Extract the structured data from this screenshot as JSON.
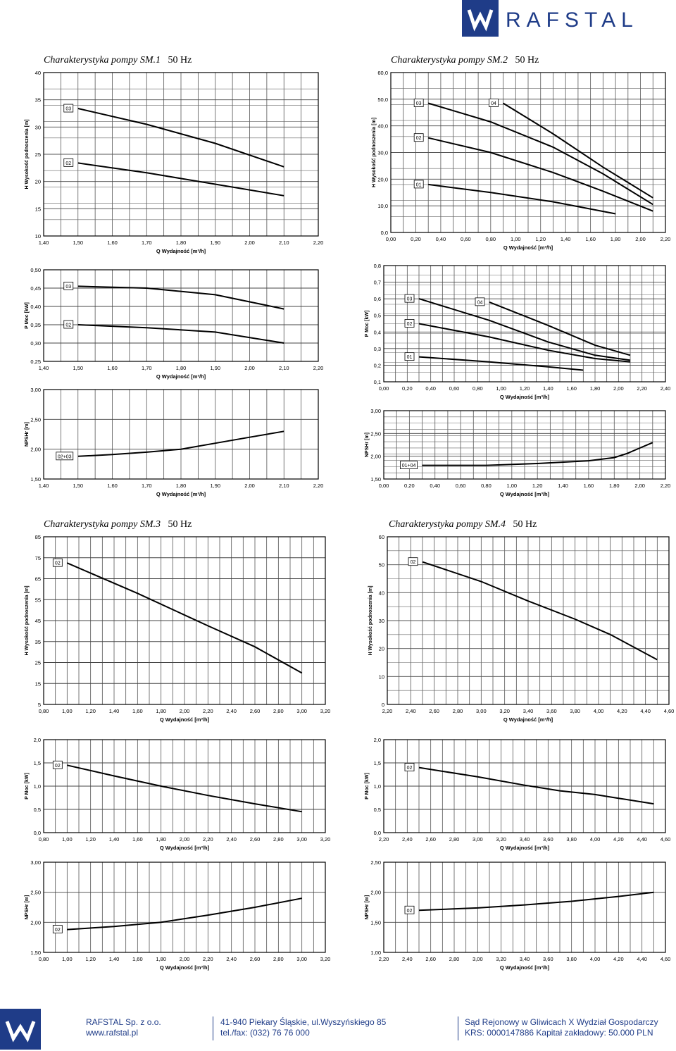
{
  "header": {
    "brand": "RAFSTAL",
    "accent": "#1f3c88"
  },
  "titles": [
    {
      "name": "Charakterystyka pompy SM.1",
      "freq": "50 Hz"
    },
    {
      "name": "Charakterystyka pompy SM.2",
      "freq": "50 Hz"
    },
    {
      "name": "Charakterystyka pompy SM.3",
      "freq": "50 Hz"
    },
    {
      "name": "Charakterystyka pompy SM.4",
      "freq": "50 Hz"
    }
  ],
  "chart_data": [
    {
      "type": "line",
      "id": "sm1-h",
      "xlabel": "Q Wydajność [m³/h]",
      "ylabel": "H Wysokość podnoszenia [m]",
      "xlim": [
        1.4,
        2.2
      ],
      "ylim": [
        10,
        40
      ],
      "xticks": [
        "1,40",
        "1,50",
        "1,60",
        "1,70",
        "1,80",
        "1,90",
        "2,00",
        "2,10",
        "2,20"
      ],
      "yticks": [
        "10",
        "15",
        "20",
        "25",
        "30",
        "35",
        "40"
      ],
      "series": [
        {
          "name": "03",
          "x": [
            1.5,
            1.7,
            1.9,
            2.1
          ],
          "y": [
            33.4,
            30.5,
            27.0,
            22.7
          ]
        },
        {
          "name": "02",
          "x": [
            1.5,
            1.7,
            1.9,
            2.1
          ],
          "y": [
            23.4,
            21.6,
            19.5,
            17.4
          ]
        }
      ]
    },
    {
      "type": "line",
      "id": "sm2-h",
      "xlabel": "Q Wydajność [m³/h]",
      "ylabel": "H Wysokość podnoszenia [m]",
      "xlim": [
        0,
        2.2
      ],
      "ylim": [
        0,
        60
      ],
      "xticks": [
        "0,00",
        "0,20",
        "0,40",
        "0,60",
        "0,80",
        "1,00",
        "1,20",
        "1,40",
        "1,60",
        "1,80",
        "2,00",
        "2,20"
      ],
      "yticks": [
        "0,0",
        "10,0",
        "20,0",
        "30,0",
        "40,0",
        "50,0",
        "60,0"
      ],
      "series": [
        {
          "name": "04",
          "x": [
            0.9,
            1.3,
            1.7,
            2.1
          ],
          "y": [
            48.5,
            37.0,
            24.5,
            13.0
          ]
        },
        {
          "name": "03",
          "x": [
            0.3,
            0.8,
            1.3,
            1.7,
            2.1
          ],
          "y": [
            48.5,
            41.5,
            32.0,
            22.0,
            10.5
          ]
        },
        {
          "name": "02",
          "x": [
            0.3,
            0.8,
            1.3,
            1.7,
            2.1
          ],
          "y": [
            35.5,
            30.0,
            22.5,
            15.5,
            8.0
          ]
        },
        {
          "name": "01",
          "x": [
            0.3,
            0.8,
            1.3,
            1.8
          ],
          "y": [
            18.0,
            15.0,
            11.5,
            7.0
          ]
        }
      ]
    },
    {
      "type": "line",
      "id": "sm1-p",
      "xlabel": "Q Wydajność [m³/h]",
      "ylabel": "P Moc [kW]",
      "xlim": [
        1.4,
        2.2
      ],
      "ylim": [
        0.25,
        0.5
      ],
      "xticks": [
        "1,40",
        "1,50",
        "1,60",
        "1,70",
        "1,80",
        "1,90",
        "2,00",
        "2,10",
        "2,20"
      ],
      "yticks": [
        "0,25",
        "0,30",
        "0,35",
        "0,40",
        "0,45",
        "0,50"
      ],
      "series": [
        {
          "name": "03",
          "x": [
            1.5,
            1.7,
            1.9,
            2.1
          ],
          "y": [
            0.455,
            0.45,
            0.432,
            0.393
          ]
        },
        {
          "name": "02",
          "x": [
            1.5,
            1.7,
            1.9,
            2.1
          ],
          "y": [
            0.35,
            0.342,
            0.33,
            0.3
          ]
        }
      ]
    },
    {
      "type": "line",
      "id": "sm2-p",
      "xlabel": "Q Wydajność [m³/h]",
      "ylabel": "P Moc [kW]",
      "xlim": [
        0,
        2.4
      ],
      "ylim": [
        0.1,
        0.8
      ],
      "xticks": [
        "0,00",
        "0,20",
        "0,40",
        "0,60",
        "0,80",
        "1,00",
        "1,20",
        "1,40",
        "1,60",
        "1,80",
        "2,00",
        "2,20",
        "2,40"
      ],
      "yticks": [
        "0,1",
        "0,2",
        "0,3",
        "0,4",
        "0,5",
        "0,6",
        "0,7",
        "0,8"
      ],
      "series": [
        {
          "name": "04",
          "x": [
            0.9,
            1.4,
            1.8,
            2.1
          ],
          "y": [
            0.58,
            0.44,
            0.32,
            0.26
          ]
        },
        {
          "name": "03",
          "x": [
            0.3,
            0.9,
            1.4,
            1.8,
            2.1
          ],
          "y": [
            0.6,
            0.47,
            0.34,
            0.26,
            0.23
          ]
        },
        {
          "name": "02",
          "x": [
            0.3,
            0.9,
            1.4,
            1.8,
            2.1
          ],
          "y": [
            0.45,
            0.37,
            0.29,
            0.24,
            0.22
          ]
        },
        {
          "name": "01",
          "x": [
            0.3,
            0.9,
            1.4,
            1.7
          ],
          "y": [
            0.25,
            0.22,
            0.19,
            0.17
          ]
        }
      ]
    },
    {
      "type": "line",
      "id": "sm1-npsh",
      "xlabel": "Q Wydajność [m³/h]",
      "ylabel": "NPSHr [m]",
      "xlim": [
        1.4,
        2.2
      ],
      "ylim": [
        1.5,
        3.0
      ],
      "xticks": [
        "1,40",
        "1,50",
        "1,60",
        "1,70",
        "1,80",
        "1,90",
        "2,00",
        "2,10",
        "2,20"
      ],
      "yticks": [
        "1,50",
        "2,00",
        "2,50",
        "3,00"
      ],
      "series": [
        {
          "name": "02+03",
          "x": [
            1.5,
            1.6,
            1.7,
            1.8,
            1.9,
            2.0,
            2.1
          ],
          "y": [
            1.88,
            1.91,
            1.95,
            2.0,
            2.1,
            2.2,
            2.3
          ]
        }
      ]
    },
    {
      "type": "line",
      "id": "sm2-npsh",
      "xlabel": "Q Wydajność [m³/h]",
      "ylabel": "NPSHr [m]",
      "xlim": [
        0,
        2.2
      ],
      "ylim": [
        1.5,
        3.0
      ],
      "xticks": [
        "0,00",
        "0,20",
        "0,40",
        "0,60",
        "0,80",
        "1,00",
        "1,20",
        "1,40",
        "1,60",
        "1,80",
        "2,00",
        "2,20"
      ],
      "yticks": [
        "1,50",
        "2,00",
        "2,50",
        "3,00"
      ],
      "series": [
        {
          "name": "01+04",
          "x": [
            0.3,
            0.8,
            1.2,
            1.6,
            1.8,
            1.9,
            2.0,
            2.1
          ],
          "y": [
            1.8,
            1.8,
            1.84,
            1.9,
            1.97,
            2.06,
            2.18,
            2.3
          ]
        }
      ]
    },
    {
      "type": "line",
      "id": "sm3-h",
      "xlabel": "Q Wydajność [m³/h]",
      "ylabel": "H Wysokość podnoszenia [m]",
      "xlim": [
        0.8,
        3.2
      ],
      "ylim": [
        5,
        85
      ],
      "xticks": [
        "0,80",
        "1,00",
        "1,20",
        "1,40",
        "1,60",
        "1,80",
        "2,00",
        "2,20",
        "2,40",
        "2,60",
        "2,80",
        "3,00",
        "3,20"
      ],
      "yticks": [
        "5",
        "15",
        "25",
        "35",
        "45",
        "55",
        "65",
        "75",
        "85"
      ],
      "series": [
        {
          "name": "02",
          "x": [
            1.0,
            1.6,
            2.2,
            2.6,
            3.0
          ],
          "y": [
            72.5,
            58.0,
            42.5,
            32.5,
            20.0
          ]
        }
      ]
    },
    {
      "type": "line",
      "id": "sm4-h",
      "xlabel": "Q Wydajność [m³/h]",
      "ylabel": "H Wysokość podnoszenia [m]",
      "xlim": [
        2.2,
        4.6
      ],
      "ylim": [
        0,
        60
      ],
      "xticks": [
        "2,20",
        "2,40",
        "2,60",
        "2,80",
        "3,00",
        "3,20",
        "3,40",
        "3,60",
        "3,80",
        "4,00",
        "4,20",
        "4,40",
        "4,60"
      ],
      "yticks": [
        "0",
        "10",
        "20",
        "30",
        "40",
        "50",
        "60"
      ],
      "series": [
        {
          "name": "02",
          "x": [
            2.5,
            3.0,
            3.4,
            3.8,
            4.1,
            4.5
          ],
          "y": [
            51.0,
            44.0,
            37.0,
            30.5,
            25.0,
            16.0
          ]
        }
      ]
    },
    {
      "type": "line",
      "id": "sm3-p",
      "xlabel": "Q Wydajność [m³/h]",
      "ylabel": "P Moc [kW]",
      "xlim": [
        0.8,
        3.2
      ],
      "ylim": [
        0,
        2.0
      ],
      "xticks": [
        "0,80",
        "1,00",
        "1,20",
        "1,40",
        "1,60",
        "1,80",
        "2,00",
        "2,20",
        "2,40",
        "2,60",
        "2,80",
        "3,00",
        "3,20"
      ],
      "yticks": [
        "0,0",
        "0,5",
        "1,0",
        "1,5",
        "2,0"
      ],
      "series": [
        {
          "name": "02",
          "x": [
            1.0,
            1.4,
            1.8,
            2.2,
            2.6,
            3.0
          ],
          "y": [
            1.45,
            1.22,
            1.0,
            0.8,
            0.62,
            0.45
          ]
        }
      ]
    },
    {
      "type": "line",
      "id": "sm4-p",
      "xlabel": "Q Wydajność [m³/h]",
      "ylabel": "P Moc [kW]",
      "xlim": [
        2.2,
        4.6
      ],
      "ylim": [
        0,
        2.0
      ],
      "xticks": [
        "2,20",
        "2,40",
        "2,60",
        "2,80",
        "3,00",
        "3,20",
        "3,40",
        "3,60",
        "3,80",
        "4,00",
        "4,20",
        "4,40",
        "4,60"
      ],
      "yticks": [
        "0,0",
        "0,5",
        "1,0",
        "1,5",
        "2,0"
      ],
      "series": [
        {
          "name": "02",
          "x": [
            2.5,
            3.0,
            3.4,
            3.7,
            4.0,
            4.2,
            4.5
          ],
          "y": [
            1.4,
            1.2,
            1.02,
            0.9,
            0.82,
            0.74,
            0.62
          ]
        }
      ]
    },
    {
      "type": "line",
      "id": "sm3-npsh",
      "xlabel": "Q Wydajność [m³/h]",
      "ylabel": "NPSHr [m]",
      "xlim": [
        0.8,
        3.2
      ],
      "ylim": [
        1.5,
        3.0
      ],
      "xticks": [
        "0,80",
        "1,00",
        "1,20",
        "1,40",
        "1,60",
        "1,80",
        "2,00",
        "2,20",
        "2,40",
        "2,60",
        "2,80",
        "3,00",
        "3,20"
      ],
      "yticks": [
        "1,50",
        "2,00",
        "2,50",
        "3,00"
      ],
      "series": [
        {
          "name": "02",
          "x": [
            1.0,
            1.4,
            1.8,
            2.2,
            2.6,
            3.0
          ],
          "y": [
            1.88,
            1.93,
            2.0,
            2.12,
            2.25,
            2.4
          ]
        }
      ]
    },
    {
      "type": "line",
      "id": "sm4-npsh",
      "xlabel": "Q Wydajność [m³/h]",
      "ylabel": "NPSHr [m]",
      "xlim": [
        2.2,
        4.6
      ],
      "ylim": [
        1.0,
        2.5
      ],
      "xticks": [
        "2,20",
        "2,40",
        "2,60",
        "2,80",
        "3,00",
        "3,20",
        "3,40",
        "3,60",
        "3,80",
        "4,00",
        "4,20",
        "4,40",
        "4,60"
      ],
      "yticks": [
        "1,00",
        "1,50",
        "2,00",
        "2,50"
      ],
      "series": [
        {
          "name": "02",
          "x": [
            2.5,
            3.0,
            3.4,
            3.8,
            4.2,
            4.5
          ],
          "y": [
            1.7,
            1.74,
            1.79,
            1.85,
            1.93,
            2.0
          ]
        }
      ]
    }
  ],
  "footer": {
    "company": "RAFSTAL Sp. z o.o.",
    "website": "www.rafstal.pl",
    "address": "41-940 Piekary Śląskie, ul.Wyszyńskiego 85",
    "phone": "tel./fax: (032) 76 76 000",
    "court": "Sąd Rejonowy w Gliwicach X Wydział Gospodarczy",
    "krs": "KRS: 0000147886 Kapitał zakładowy: 50.000 PLN"
  }
}
